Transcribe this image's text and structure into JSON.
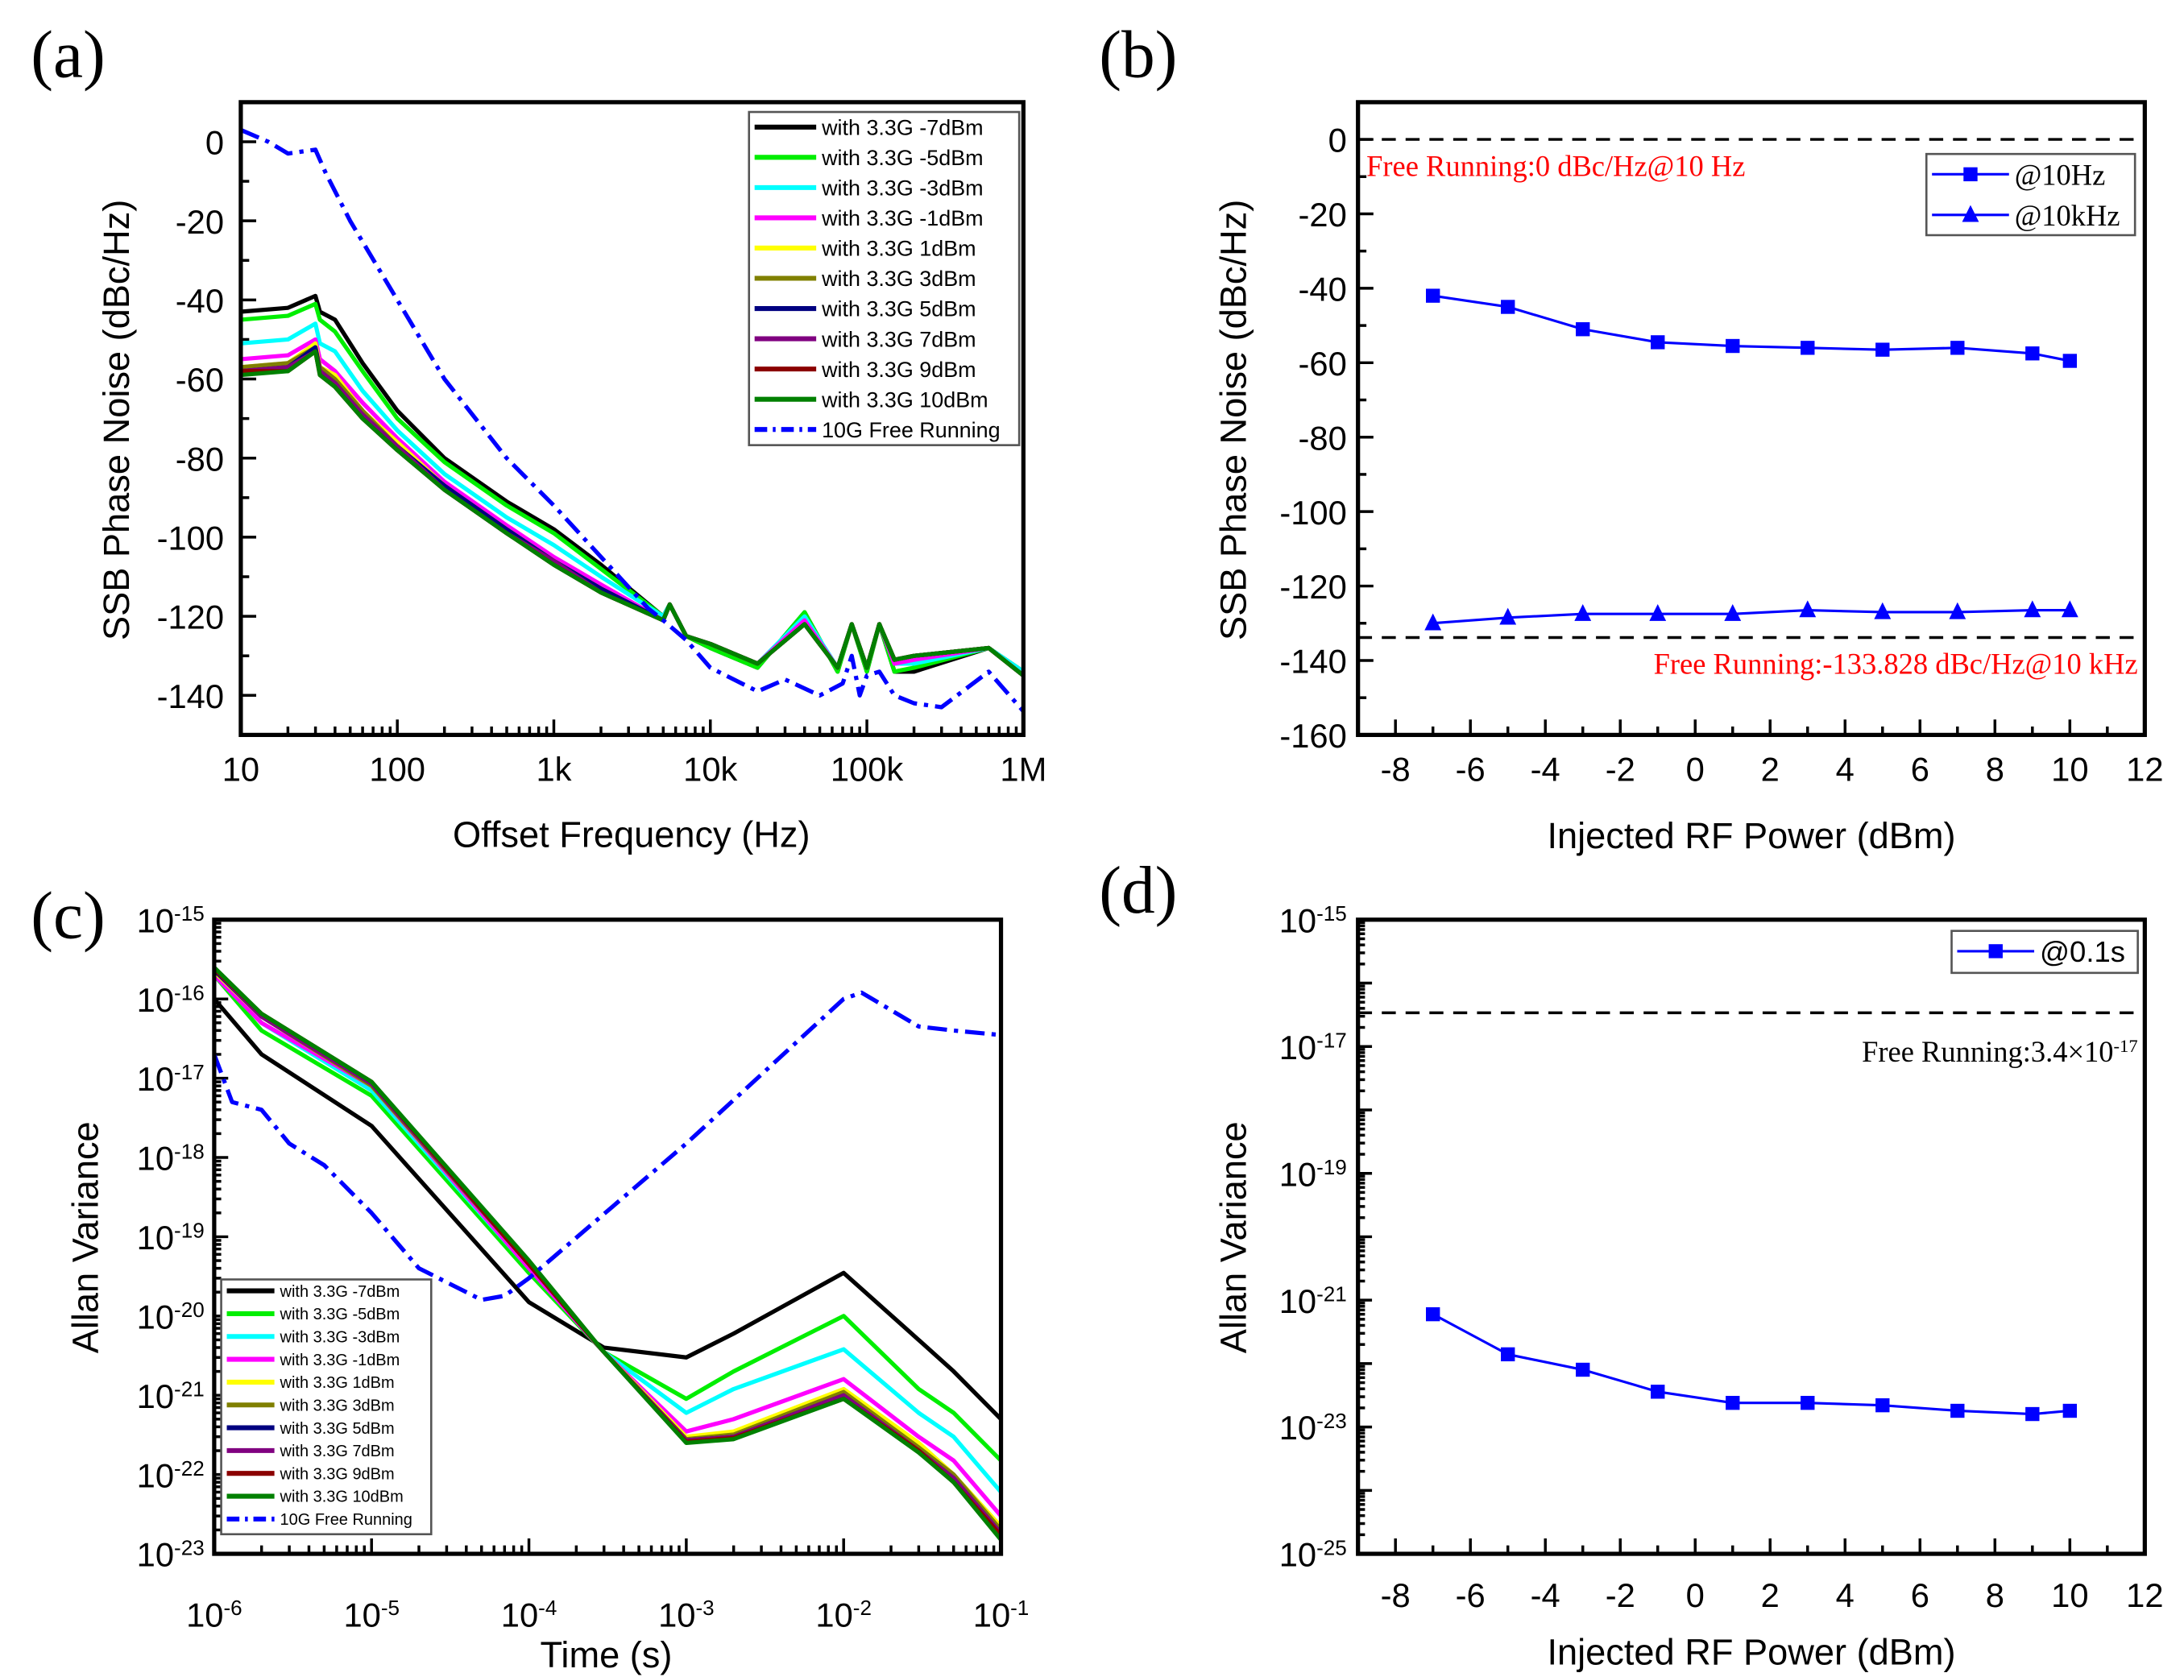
{
  "chart_data": [
    {
      "panel_label": "(a)",
      "type": "line",
      "xlabel": "Offset Frequency (Hz)",
      "ylabel": "SSB Phase Noise (dBc/Hz)",
      "xscale": "log",
      "xlim": [
        10,
        1000000
      ],
      "ylim": [
        -150,
        10
      ],
      "xticks": [
        {
          "v": 10,
          "label": "10"
        },
        {
          "v": 100,
          "label": "100"
        },
        {
          "v": 1000,
          "label": "1k"
        },
        {
          "v": 10000,
          "label": "10k"
        },
        {
          "v": 100000,
          "label": "100k"
        },
        {
          "v": 1000000,
          "label": "1M"
        }
      ],
      "yticks": [
        {
          "v": 0,
          "label": "0"
        },
        {
          "v": -20,
          "label": "-20"
        },
        {
          "v": -40,
          "label": "-40"
        },
        {
          "v": -60,
          "label": "-60"
        },
        {
          "v": -80,
          "label": "-80"
        },
        {
          "v": -100,
          "label": "-100"
        },
        {
          "v": -120,
          "label": "-120"
        },
        {
          "v": -140,
          "label": "-140"
        }
      ],
      "legend": "top-right",
      "x": [
        10,
        20,
        30,
        32,
        40,
        60,
        100,
        200,
        500,
        1000,
        2000,
        5000,
        5500,
        7000,
        10000,
        20000,
        40000,
        65000,
        80000,
        100000,
        120000,
        150000,
        200000,
        600000,
        1000000
      ],
      "series": [
        {
          "name": "with 3.3G -7dBm",
          "color": "#000000",
          "style": "solid",
          "values": [
            -43,
            -42,
            -39,
            -43,
            -45,
            -56,
            -68,
            -80,
            -91,
            -98,
            -107,
            -120,
            -117,
            -125,
            -128,
            -133,
            -119,
            -134,
            -122,
            -134,
            -122,
            -134,
            -134,
            -128,
            -134
          ]
        },
        {
          "name": "with 3.3G -5dBm",
          "color": "#00ee00",
          "style": "solid",
          "values": [
            -45,
            -44,
            -41,
            -45,
            -48,
            -58,
            -70,
            -81,
            -92,
            -99,
            -108,
            -120,
            -117,
            -125,
            -128,
            -133,
            -119,
            -134,
            -122,
            -134,
            -122,
            -134,
            -133,
            -128,
            -134
          ]
        },
        {
          "name": "with 3.3G -3dBm",
          "color": "#00ffff",
          "style": "solid",
          "values": [
            -51,
            -50,
            -46,
            -51,
            -53,
            -63,
            -73,
            -84,
            -95,
            -102,
            -110,
            -120,
            -117,
            -125,
            -127,
            -132,
            -120,
            -133,
            -122,
            -133,
            -122,
            -132,
            -132,
            -128,
            -134
          ]
        },
        {
          "name": "with 3.3G -1dBm",
          "color": "#ff00ff",
          "style": "solid",
          "values": [
            -55,
            -54,
            -50,
            -55,
            -58,
            -66,
            -75,
            -86,
            -97,
            -105,
            -112,
            -121,
            -117,
            -125,
            -127,
            -132,
            -121,
            -133,
            -122,
            -133,
            -122,
            -132,
            -131,
            -128,
            -135
          ]
        },
        {
          "name": "with 3.3G 1dBm",
          "color": "#ffff00",
          "style": "solid",
          "values": [
            -57,
            -56,
            -51,
            -57,
            -59,
            -68,
            -76,
            -87,
            -98,
            -106,
            -113,
            -121,
            -117,
            -125,
            -127,
            -132,
            -122,
            -133,
            -122,
            -133,
            -122,
            -131,
            -130,
            -128,
            -135
          ]
        },
        {
          "name": "with 3.3G 3dBm",
          "color": "#808000",
          "style": "solid",
          "values": [
            -57,
            -56,
            -52,
            -57,
            -60,
            -68,
            -77,
            -87,
            -98,
            -106,
            -113,
            -121,
            -117,
            -125,
            -127,
            -132,
            -122,
            -133,
            -122,
            -133,
            -122,
            -131,
            -130,
            -128,
            -135
          ]
        },
        {
          "name": "with 3.3G 5dBm",
          "color": "#000080",
          "style": "solid",
          "values": [
            -58,
            -57,
            -52,
            -58,
            -61,
            -69,
            -77,
            -87,
            -98,
            -106,
            -113,
            -121,
            -117,
            -125,
            -127,
            -132,
            -122,
            -133,
            -122,
            -133,
            -122,
            -131,
            -130,
            -128,
            -135
          ]
        },
        {
          "name": "with 3.3G 7dBm",
          "color": "#800080",
          "style": "solid",
          "values": [
            -58,
            -57,
            -53,
            -58,
            -61,
            -69,
            -77,
            -88,
            -99,
            -106,
            -114,
            -121,
            -117,
            -125,
            -127,
            -132,
            -122,
            -133,
            -122,
            -133,
            -122,
            -131,
            -130,
            -128,
            -135
          ]
        },
        {
          "name": "with 3.3G 9dBm",
          "color": "#8b0000",
          "style": "solid",
          "values": [
            -58,
            -58,
            -53,
            -59,
            -62,
            -70,
            -78,
            -88,
            -99,
            -107,
            -114,
            -121,
            -117,
            -125,
            -127,
            -132,
            -122,
            -133,
            -122,
            -133,
            -122,
            -131,
            -130,
            -128,
            -135
          ]
        },
        {
          "name": "with 3.3G 10dBm",
          "color": "#008000",
          "style": "solid",
          "values": [
            -59,
            -58,
            -53,
            -59,
            -62,
            -70,
            -78,
            -88,
            -99,
            -107,
            -114,
            -121,
            -117,
            -125,
            -127,
            -132,
            -122,
            -133,
            -122,
            -133,
            -122,
            -131,
            -130,
            -128,
            -135
          ]
        },
        {
          "name": "10G Free Running",
          "color": "#0000ff",
          "style": "dashdot",
          "x": [
            10,
            15,
            20,
            30,
            35,
            50,
            100,
            200,
            500,
            1000,
            2000,
            4000,
            5000,
            7000,
            10000,
            20000,
            30000,
            50000,
            70000,
            80000,
            90000,
            100000,
            120000,
            150000,
            200000,
            300000,
            600000,
            1000000
          ],
          "values": [
            3,
            0,
            -3,
            -2,
            -8,
            -20,
            -40,
            -60,
            -80,
            -92,
            -105,
            -118,
            -121,
            -126,
            -133,
            -139,
            -136,
            -140,
            -137,
            -130,
            -140,
            -135,
            -134,
            -140,
            -142,
            -143,
            -134,
            -144
          ]
        }
      ]
    },
    {
      "panel_label": "(b)",
      "type": "line",
      "xlabel": "Injected RF Power (dBm)",
      "ylabel": "SSB Phase Noise (dBc/Hz)",
      "xscale": "linear",
      "xlim": [
        -9,
        12
      ],
      "ylim": [
        -160,
        10
      ],
      "xticks": [
        {
          "v": -8,
          "label": "-8"
        },
        {
          "v": -6,
          "label": "-6"
        },
        {
          "v": -4,
          "label": "-4"
        },
        {
          "v": -2,
          "label": "-2"
        },
        {
          "v": 0,
          "label": "0"
        },
        {
          "v": 2,
          "label": "2"
        },
        {
          "v": 4,
          "label": "4"
        },
        {
          "v": 6,
          "label": "6"
        },
        {
          "v": 8,
          "label": "8"
        },
        {
          "v": 10,
          "label": "10"
        },
        {
          "v": 12,
          "label": "12"
        }
      ],
      "yticks": [
        {
          "v": 0,
          "label": "0"
        },
        {
          "v": -20,
          "label": "-20"
        },
        {
          "v": -40,
          "label": "-40"
        },
        {
          "v": -60,
          "label": "-60"
        },
        {
          "v": -80,
          "label": "-80"
        },
        {
          "v": -100,
          "label": "-100"
        },
        {
          "v": -120,
          "label": "-120"
        },
        {
          "v": -140,
          "label": "-140"
        },
        {
          "v": -160,
          "label": "-160"
        }
      ],
      "legend": "top-right",
      "x": [
        -7,
        -5,
        -3,
        -1,
        1,
        3,
        5,
        7,
        9,
        10
      ],
      "series": [
        {
          "name": "@10Hz",
          "color": "#0000ff",
          "style": "solid",
          "marker": "square",
          "values": [
            -42,
            -45,
            -51,
            -54.5,
            -55.5,
            -56,
            -56.5,
            -56,
            -57.5,
            -59.5
          ]
        },
        {
          "name": "@10kHz",
          "color": "#0000ff",
          "style": "solid",
          "marker": "triangle",
          "values": [
            -130,
            -128.5,
            -127.5,
            -127.5,
            -127.5,
            -126.5,
            -127,
            -127,
            -126.5,
            -126.5
          ]
        }
      ],
      "reference_lines": [
        {
          "value": 0,
          "label": "Free Running:0 dBc/Hz@10 Hz",
          "color": "#ff0000",
          "align": "left-below"
        },
        {
          "value": -133.828,
          "label": "Free Running:-133.828 dBc/Hz@10 kHz",
          "color": "#ff0000",
          "align": "right-below"
        }
      ]
    },
    {
      "panel_label": "(c)",
      "type": "line",
      "xlabel": "Time (s)",
      "ylabel": "Allan Variance",
      "xscale": "log",
      "yscale": "log",
      "xlim": [
        1e-06,
        0.1
      ],
      "ylim": [
        1e-23,
        1e-15
      ],
      "xticks": [
        {
          "v": 1e-06,
          "label": "10^-6"
        },
        {
          "v": 1e-05,
          "label": "10^-5"
        },
        {
          "v": 0.0001,
          "label": "10^-4"
        },
        {
          "v": 0.001,
          "label": "10^-3"
        },
        {
          "v": 0.01,
          "label": "10^-2"
        },
        {
          "v": 0.1,
          "label": "10^-1"
        }
      ],
      "yticks": [
        {
          "v": 1e-15,
          "label": "10^-15"
        },
        {
          "v": 1e-16,
          "label": "10^-16"
        },
        {
          "v": 1e-17,
          "label": "10^-17"
        },
        {
          "v": 1e-18,
          "label": "10^-18"
        },
        {
          "v": 1e-19,
          "label": "10^-19"
        },
        {
          "v": 1e-20,
          "label": "10^-20"
        },
        {
          "v": 1e-21,
          "label": "10^-21"
        },
        {
          "v": 1e-22,
          "label": "10^-22"
        },
        {
          "v": 1e-23,
          "label": "10^-23"
        }
      ],
      "legend": "bottom-left",
      "x": [
        1e-06,
        2e-06,
        1e-05,
        0.0001,
        0.0003,
        0.001,
        0.002,
        0.01,
        0.03,
        0.05,
        0.1
      ],
      "series": [
        {
          "name": "with 3.3G -7dBm",
          "color": "#000000",
          "style": "solid",
          "values": [
            1e-16,
            2e-17,
            2.5e-18,
            1.5e-20,
            4e-21,
            3e-21,
            6e-21,
            3.5e-20,
            5e-21,
            2e-21,
            5e-22
          ]
        },
        {
          "name": "with 3.3G -5dBm",
          "color": "#00ee00",
          "style": "solid",
          "values": [
            2e-16,
            4e-17,
            6e-18,
            3.5e-20,
            3.5e-21,
            9e-22,
            2e-21,
            1e-20,
            1.2e-21,
            6e-22,
            1.5e-22
          ]
        },
        {
          "name": "with 3.3G -3dBm",
          "color": "#00ffff",
          "style": "solid",
          "values": [
            2e-16,
            5e-17,
            7e-18,
            4e-20,
            3.5e-21,
            6e-22,
            1.2e-21,
            3.8e-21,
            6e-22,
            3e-22,
            6e-23
          ]
        },
        {
          "name": "with 3.3G -1dBm",
          "color": "#ff00ff",
          "style": "solid",
          "values": [
            2e-16,
            5e-17,
            8e-18,
            4e-20,
            3.5e-21,
            3.5e-22,
            5e-22,
            1.6e-21,
            3e-22,
            1.5e-22,
            3e-23
          ]
        },
        {
          "name": "with 3.3G 1dBm",
          "color": "#ffff00",
          "style": "solid",
          "values": [
            2.2e-16,
            6e-17,
            8e-18,
            4.5e-20,
            3.5e-21,
            3e-22,
            3.5e-22,
            1.2e-21,
            2.5e-22,
            1e-22,
            2.2e-23
          ]
        },
        {
          "name": "with 3.3G 3dBm",
          "color": "#808000",
          "style": "solid",
          "values": [
            2.3e-16,
            6e-17,
            8e-18,
            4.5e-20,
            3.5e-21,
            2.8e-22,
            3.2e-22,
            1.1e-21,
            2.2e-22,
            1e-22,
            2e-23
          ]
        },
        {
          "name": "with 3.3G 5dBm",
          "color": "#000080",
          "style": "solid",
          "values": [
            2.3e-16,
            6e-17,
            8.5e-18,
            4.5e-20,
            3.5e-21,
            2.7e-22,
            3e-22,
            1e-21,
            2e-22,
            9e-23,
            1.8e-23
          ]
        },
        {
          "name": "with 3.3G 7dBm",
          "color": "#800080",
          "style": "solid",
          "values": [
            2.4e-16,
            6e-17,
            8.5e-18,
            4.5e-20,
            3.5e-21,
            2.7e-22,
            3e-22,
            1e-21,
            2e-22,
            9e-23,
            1.8e-23
          ]
        },
        {
          "name": "with 3.3G 9dBm",
          "color": "#8b0000",
          "style": "solid",
          "values": [
            2.4e-16,
            6.5e-17,
            9e-18,
            4.5e-20,
            3.5e-21,
            2.6e-22,
            2.9e-22,
            9e-22,
            2e-22,
            8e-23,
            1.7e-23
          ]
        },
        {
          "name": "with 3.3G 10dBm",
          "color": "#008000",
          "style": "solid",
          "values": [
            2.5e-16,
            6.5e-17,
            9e-18,
            5e-20,
            3.5e-21,
            2.5e-22,
            2.8e-22,
            9e-22,
            1.9e-22,
            8e-23,
            1.5e-23
          ]
        },
        {
          "name": "10G Free Running",
          "color": "#0000ff",
          "style": "dashdot",
          "x": [
            1e-06,
            1.3e-06,
            2e-06,
            3e-06,
            5e-06,
            1e-05,
            2e-05,
            5e-05,
            7e-05,
            0.0001,
            0.001,
            0.01,
            0.013,
            0.03,
            0.05,
            0.1
          ],
          "values": [
            2e-17,
            5e-18,
            4e-18,
            1.5e-18,
            8e-19,
            2e-19,
            4e-20,
            1.6e-20,
            1.8e-20,
            3e-20,
            1.5e-18,
            1e-16,
            1.2e-16,
            4.5e-17,
            4e-17,
            3.5e-17
          ]
        }
      ]
    },
    {
      "panel_label": "(d)",
      "type": "line",
      "xlabel": "Injected RF Power (dBm)",
      "ylabel": "Allan Variance",
      "xscale": "linear",
      "yscale": "log",
      "xlim": [
        -9,
        12
      ],
      "ylim": [
        1e-25,
        1e-15
      ],
      "xticks": [
        {
          "v": -8,
          "label": "-8"
        },
        {
          "v": -6,
          "label": "-6"
        },
        {
          "v": -4,
          "label": "-4"
        },
        {
          "v": -2,
          "label": "-2"
        },
        {
          "v": 0,
          "label": "0"
        },
        {
          "v": 2,
          "label": "2"
        },
        {
          "v": 4,
          "label": "4"
        },
        {
          "v": 6,
          "label": "6"
        },
        {
          "v": 8,
          "label": "8"
        },
        {
          "v": 10,
          "label": "10"
        },
        {
          "v": 12,
          "label": "12"
        }
      ],
      "yticks": [
        {
          "v": 1e-15,
          "label": "10^-15"
        },
        {
          "v": 1e-17,
          "label": "10^-17"
        },
        {
          "v": 1e-19,
          "label": "10^-19"
        },
        {
          "v": 1e-21,
          "label": "10^-21"
        },
        {
          "v": 1e-23,
          "label": "10^-23"
        },
        {
          "v": 1e-25,
          "label": "10^-25"
        }
      ],
      "legend": "top-right",
      "x": [
        -7,
        -5,
        -3,
        -1,
        1,
        3,
        5,
        7,
        9,
        10
      ],
      "series": [
        {
          "name": "@0.1s",
          "color": "#0000ff",
          "style": "solid",
          "marker": "square",
          "values": [
            6e-22,
            1.4e-22,
            8e-23,
            3.6e-23,
            2.4e-23,
            2.4e-23,
            2.2e-23,
            1.8e-23,
            1.6e-23,
            1.8e-23
          ]
        }
      ],
      "reference_lines": [
        {
          "value": 3.4e-17,
          "label": "Free Running:3.4×10^-17",
          "color": "#000000",
          "align": "right-below"
        }
      ]
    }
  ]
}
